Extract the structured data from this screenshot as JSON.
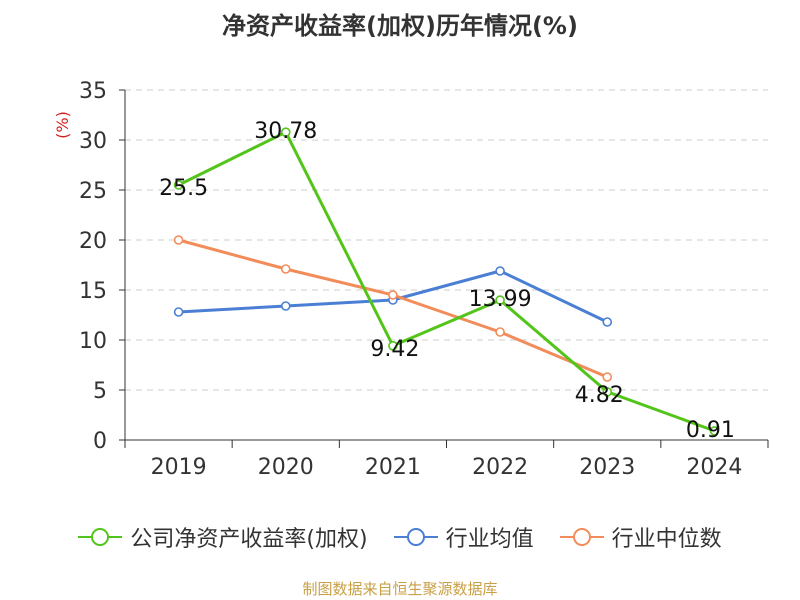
{
  "chart_data": {
    "type": "line",
    "title": "净资产收益率(加权)历年情况(%)",
    "ylabel": "(%)",
    "xlabel": "",
    "categories": [
      "2019",
      "2020",
      "2021",
      "2022",
      "2023",
      "2024"
    ],
    "ylim": [
      0,
      35
    ],
    "yticks": [
      0,
      5,
      10,
      15,
      20,
      25,
      30,
      35
    ],
    "grid": true,
    "legend_position": "bottom",
    "series": [
      {
        "name": "公司净资产收益率(加权)",
        "color": "#52c41a",
        "values": [
          25.5,
          30.78,
          9.42,
          13.99,
          4.82,
          0.91
        ],
        "labels": [
          "25.5",
          "30.78",
          "9.42",
          "13.99",
          "4.82",
          "0.91"
        ]
      },
      {
        "name": "行业均值",
        "color": "#4a7fd4",
        "values": [
          12.8,
          13.4,
          14.0,
          16.9,
          11.8,
          null
        ]
      },
      {
        "name": "行业中位数",
        "color": "#f28c5a",
        "values": [
          20.0,
          17.1,
          14.5,
          10.8,
          6.3,
          null
        ]
      }
    ],
    "source": "制图数据来自恒生聚源数据库"
  }
}
